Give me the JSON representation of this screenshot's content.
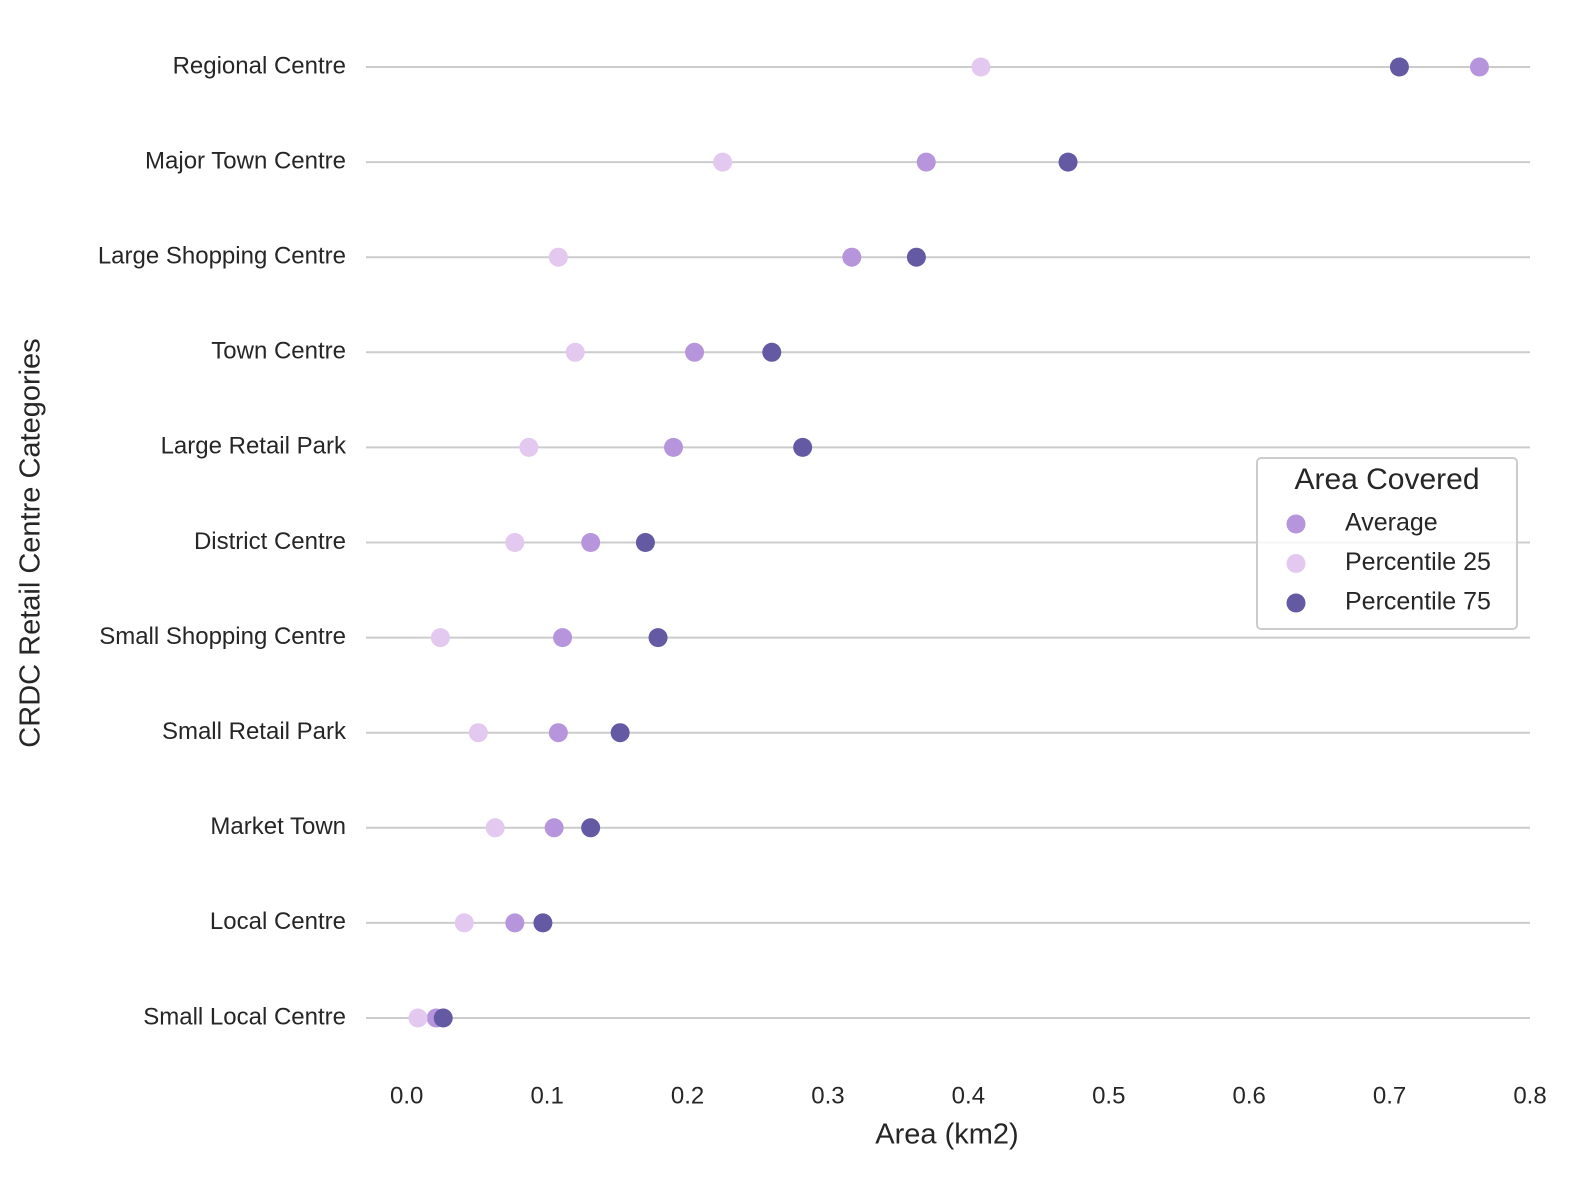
{
  "chart_data": {
    "type": "dot",
    "categories": [
      "Regional Centre",
      "Major Town Centre",
      "Large Shopping Centre",
      "Town Centre",
      "Large Retail Park",
      "District Centre",
      "Small Shopping Centre",
      "Small Retail Park",
      "Market Town",
      "Local Centre",
      "Small Local Centre"
    ],
    "series": [
      {
        "name": "Average",
        "color": "#b695dd",
        "values": [
          0.764,
          0.37,
          0.317,
          0.205,
          0.19,
          0.131,
          0.111,
          0.108,
          0.105,
          0.077,
          0.021
        ]
      },
      {
        "name": "Percentile 25",
        "color": "#e3c8ef",
        "values": [
          0.409,
          0.225,
          0.108,
          0.12,
          0.087,
          0.077,
          0.024,
          0.051,
          0.063,
          0.041,
          0.008
        ]
      },
      {
        "name": "Percentile 75",
        "color": "#6459a3",
        "values": [
          0.707,
          0.471,
          0.363,
          0.26,
          0.282,
          0.17,
          0.179,
          0.152,
          0.131,
          0.097,
          0.026
        ]
      }
    ],
    "xlabel": "Area (km2)",
    "ylabel": "CRDC Retail Centre Categories",
    "legend_title": "Area Covered",
    "legend": "center right",
    "xlim": [
      -0.029,
      0.8
    ],
    "xticks": [
      {
        "value": 0,
        "label": "0.0"
      },
      0.1,
      0.2,
      0.3,
      0.4,
      0.5,
      0.6,
      0.7,
      0.8
    ]
  }
}
